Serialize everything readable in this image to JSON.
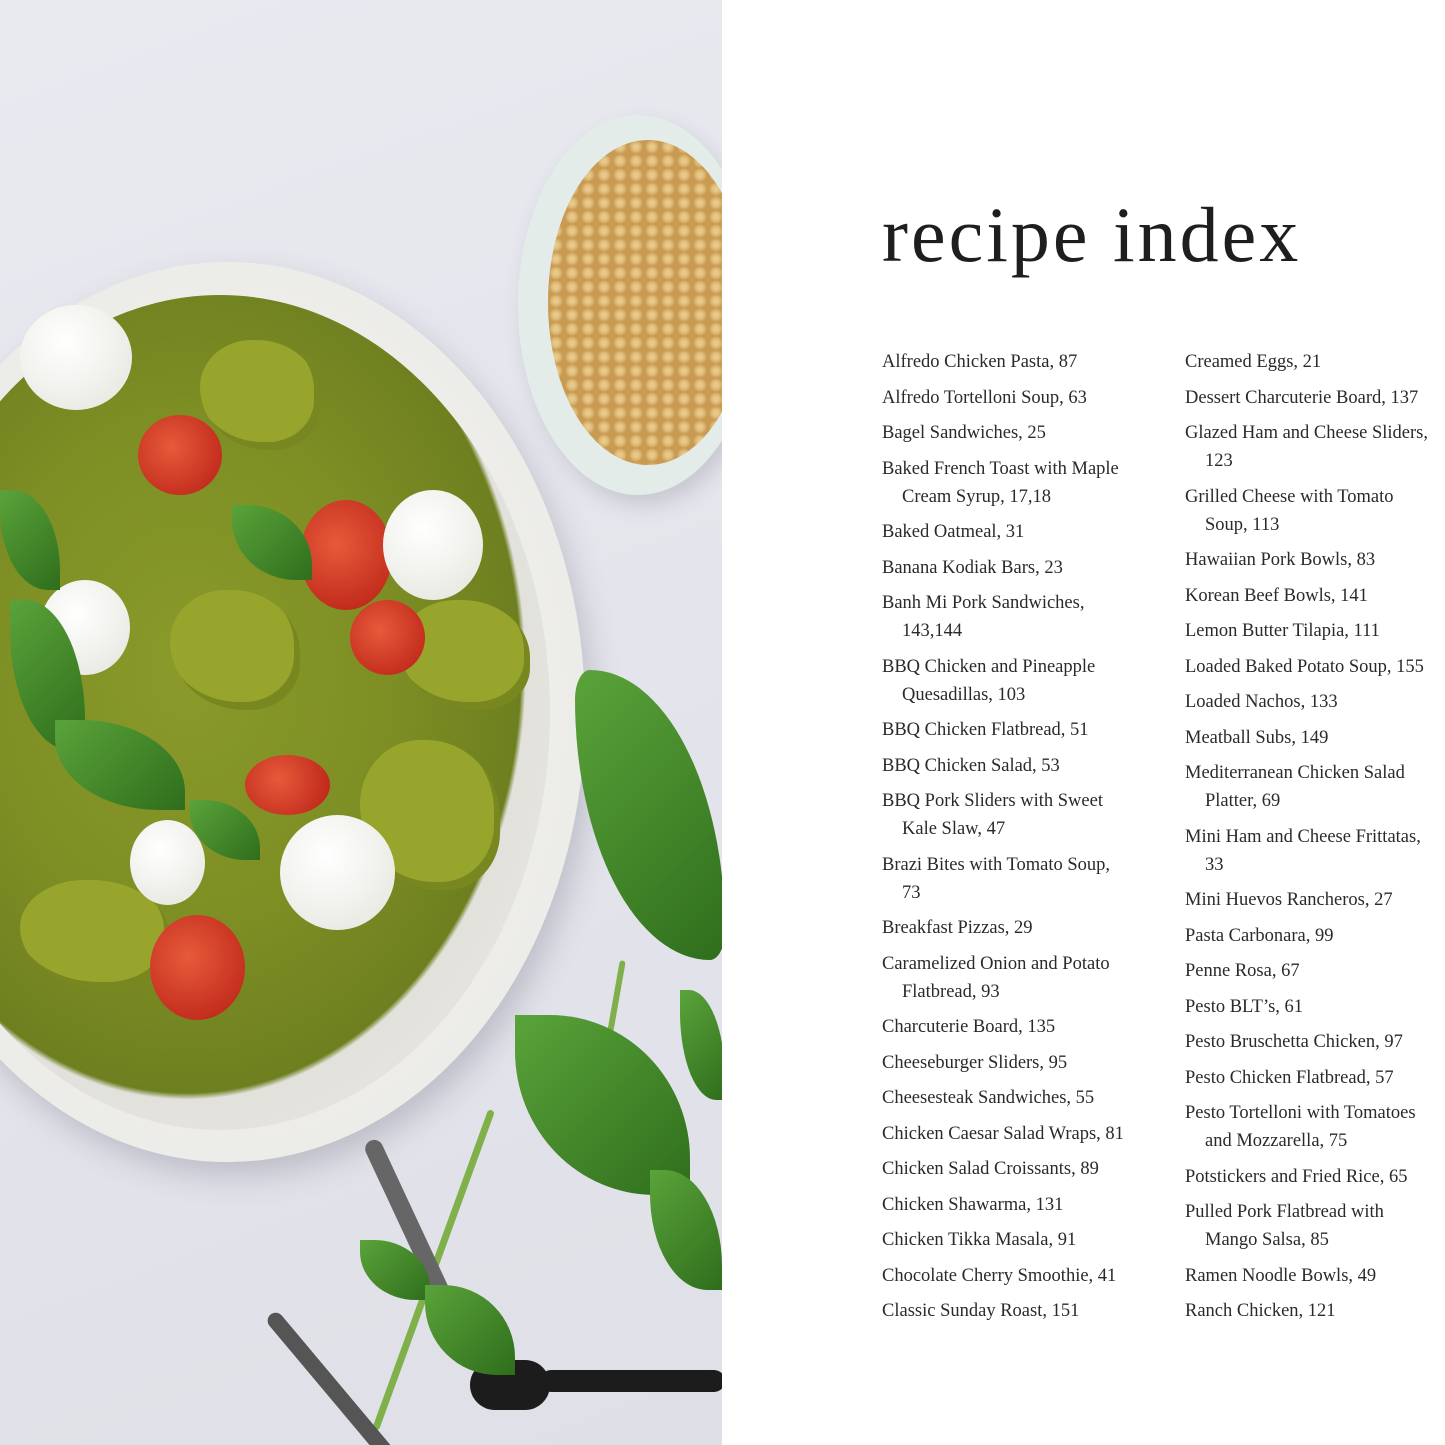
{
  "title": "recipe index",
  "columns": [
    [
      [
        "Alfredo Chicken Pasta, 87"
      ],
      [
        "Alfredo Tortelloni Soup, 63"
      ],
      [
        "Bagel Sandwiches, 25"
      ],
      [
        "Baked French Toast with Maple",
        "Cream Syrup, 17,18"
      ],
      [
        "Baked Oatmeal, 31"
      ],
      [
        "Banana Kodiak Bars, 23"
      ],
      [
        "Banh Mi Pork Sandwiches,",
        "143,144"
      ],
      [
        "BBQ Chicken and Pineapple",
        "Quesadillas, 103"
      ],
      [
        "BBQ Chicken Flatbread, 51"
      ],
      [
        "BBQ Chicken Salad, 53"
      ],
      [
        "BBQ Pork Sliders with Sweet",
        "Kale Slaw, 47"
      ],
      [
        "Brazi Bites with Tomato Soup,",
        "73"
      ],
      [
        "Breakfast Pizzas, 29"
      ],
      [
        "Caramelized Onion and Potato",
        "Flatbread, 93"
      ],
      [
        "Charcuterie Board, 135"
      ],
      [
        "Cheeseburger Sliders, 95"
      ],
      [
        "Cheesesteak Sandwiches, 55"
      ],
      [
        "Chicken Caesar Salad Wraps, 81"
      ],
      [
        "Chicken Salad Croissants, 89"
      ],
      [
        "Chicken Shawarma, 131"
      ],
      [
        "Chicken Tikka Masala, 91"
      ],
      [
        "Chocolate Cherry Smoothie, 41"
      ],
      [
        "Classic Sunday Roast, 151"
      ]
    ],
    [
      [
        "Creamed Eggs, 21"
      ],
      [
        "Dessert Charcuterie Board, 137"
      ],
      [
        "Glazed Ham and Cheese Sliders,",
        "123"
      ],
      [
        "Grilled Cheese with Tomato",
        "Soup, 113"
      ],
      [
        "Hawaiian Pork Bowls, 83"
      ],
      [
        "Korean Beef Bowls, 141"
      ],
      [
        "Lemon Butter Tilapia, 111"
      ],
      [
        "Loaded Baked Potato Soup, 155"
      ],
      [
        "Loaded Nachos, 133"
      ],
      [
        "Meatball Subs, 149"
      ],
      [
        "Mediterranean Chicken Salad",
        "Platter, 69"
      ],
      [
        "Mini Ham and Cheese Frittatas,",
        "33"
      ],
      [
        "Mini Huevos Rancheros, 27"
      ],
      [
        "Pasta Carbonara, 99"
      ],
      [
        "Penne Rosa, 67"
      ],
      [
        "Pesto BLT’s, 61"
      ],
      [
        "Pesto Bruschetta Chicken, 97"
      ],
      [
        "Pesto Chicken Flatbread, 57"
      ],
      [
        "Pesto Tortelloni with Tomatoes",
        "and Mozzarella, 75"
      ],
      [
        "Potstickers and Fried Rice, 65"
      ],
      [
        "Pulled Pork Flatbread with",
        "Mango Salsa, 85"
      ],
      [
        "Ramen Noodle Bowls, 49"
      ],
      [
        "Ranch Chicken, 121"
      ]
    ]
  ]
}
